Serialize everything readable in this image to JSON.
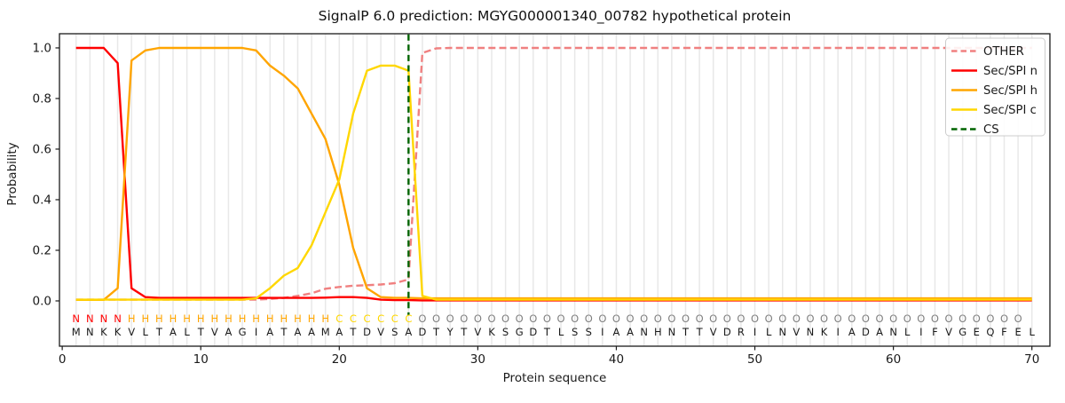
{
  "title": "SignalP 6.0 prediction: MGYG000001340_00782 hypothetical protein",
  "axes": {
    "xlabel": "Protein sequence",
    "ylabel": "Probability",
    "xticks": [
      0,
      10,
      20,
      30,
      40,
      50,
      60,
      70
    ],
    "ytick_labels": [
      "0.0",
      "0.2",
      "0.4",
      "0.6",
      "0.8",
      "1.0"
    ],
    "ytick_values": [
      0.0,
      0.2,
      0.4,
      0.6,
      0.8,
      1.0
    ]
  },
  "legend": [
    {
      "label": "OTHER",
      "color": "#f08080",
      "dashed": true
    },
    {
      "label": "Sec/SPI n",
      "color": "#ff0000",
      "dashed": false
    },
    {
      "label": "Sec/SPI h",
      "color": "#ffa500",
      "dashed": false
    },
    {
      "label": "Sec/SPI c",
      "color": "#ffd700",
      "dashed": false
    },
    {
      "label": "CS",
      "color": "#006400",
      "dashed": true
    }
  ],
  "chart_data": {
    "type": "line",
    "title": "SignalP 6.0 prediction: MGYG000001340_00782 hypothetical protein",
    "xlabel": "Protein sequence",
    "ylabel": "Probability",
    "xlim": [
      -0.2,
      71.3
    ],
    "ylim": [
      -0.179,
      1.056
    ],
    "grid": "vertical-per-residue",
    "legend_position": "upper right",
    "x": [
      1,
      2,
      3,
      4,
      5,
      6,
      7,
      8,
      9,
      10,
      11,
      12,
      13,
      14,
      15,
      16,
      17,
      18,
      19,
      20,
      21,
      22,
      23,
      24,
      25,
      26,
      27,
      28,
      29,
      30,
      31,
      32,
      33,
      34,
      35,
      36,
      37,
      38,
      39,
      40,
      41,
      42,
      43,
      44,
      45,
      46,
      47,
      48,
      49,
      50,
      51,
      52,
      53,
      54,
      55,
      56,
      57,
      58,
      59,
      60,
      61,
      62,
      63,
      64,
      65,
      66,
      67,
      68,
      69,
      70
    ],
    "series": [
      {
        "name": "OTHER",
        "color": "#f08080",
        "style": "dashed",
        "values": [
          0.005,
          0.005,
          0.005,
          0.005,
          0.005,
          0.005,
          0.005,
          0.005,
          0.005,
          0.005,
          0.005,
          0.005,
          0.005,
          0.005,
          0.008,
          0.012,
          0.02,
          0.03,
          0.048,
          0.055,
          0.06,
          0.062,
          0.065,
          0.07,
          0.085,
          0.98,
          0.998,
          1.0,
          1.0,
          1.0,
          1.0,
          1.0,
          1.0,
          1.0,
          1.0,
          1.0,
          1.0,
          1.0,
          1.0,
          1.0,
          1.0,
          1.0,
          1.0,
          1.0,
          1.0,
          1.0,
          1.0,
          1.0,
          1.0,
          1.0,
          1.0,
          1.0,
          1.0,
          1.0,
          1.0,
          1.0,
          1.0,
          1.0,
          1.0,
          1.0,
          1.0,
          1.0,
          1.0,
          1.0,
          1.0,
          1.0,
          1.0,
          1.0,
          1.0,
          1.0
        ]
      },
      {
        "name": "Sec/SPI n",
        "color": "#ff0000",
        "style": "solid",
        "values": [
          1.0,
          1.0,
          1.0,
          0.94,
          0.05,
          0.015,
          0.012,
          0.012,
          0.012,
          0.012,
          0.012,
          0.012,
          0.012,
          0.012,
          0.012,
          0.012,
          0.012,
          0.012,
          0.013,
          0.015,
          0.015,
          0.012,
          0.005,
          0.003,
          0.003,
          0.002,
          0.002,
          0.002,
          0.002,
          0.002,
          0.002,
          0.002,
          0.002,
          0.002,
          0.002,
          0.002,
          0.002,
          0.002,
          0.002,
          0.002,
          0.002,
          0.002,
          0.002,
          0.002,
          0.002,
          0.002,
          0.002,
          0.002,
          0.002,
          0.002,
          0.002,
          0.002,
          0.002,
          0.002,
          0.002,
          0.002,
          0.002,
          0.002,
          0.002,
          0.002,
          0.002,
          0.002,
          0.002,
          0.002,
          0.002,
          0.002,
          0.002,
          0.002,
          0.002,
          0.002
        ]
      },
      {
        "name": "Sec/SPI h",
        "color": "#ffa500",
        "style": "solid",
        "values": [
          0.004,
          0.004,
          0.004,
          0.05,
          0.95,
          0.99,
          1.0,
          1.0,
          1.0,
          1.0,
          1.0,
          1.0,
          1.0,
          0.99,
          0.93,
          0.89,
          0.84,
          0.74,
          0.64,
          0.46,
          0.21,
          0.05,
          0.015,
          0.012,
          0.012,
          0.01,
          0.01,
          0.01,
          0.01,
          0.01,
          0.01,
          0.01,
          0.01,
          0.01,
          0.01,
          0.01,
          0.01,
          0.01,
          0.01,
          0.01,
          0.01,
          0.01,
          0.01,
          0.01,
          0.01,
          0.01,
          0.01,
          0.01,
          0.01,
          0.01,
          0.01,
          0.01,
          0.01,
          0.01,
          0.01,
          0.01,
          0.01,
          0.01,
          0.01,
          0.01,
          0.01,
          0.01,
          0.01,
          0.01,
          0.01,
          0.01,
          0.01,
          0.01,
          0.01,
          0.01
        ]
      },
      {
        "name": "Sec/SPI c",
        "color": "#ffd700",
        "style": "solid",
        "values": [
          0.005,
          0.005,
          0.005,
          0.005,
          0.005,
          0.005,
          0.005,
          0.005,
          0.005,
          0.005,
          0.005,
          0.005,
          0.005,
          0.01,
          0.05,
          0.1,
          0.13,
          0.22,
          0.35,
          0.48,
          0.74,
          0.91,
          0.93,
          0.93,
          0.91,
          0.02,
          0.005,
          0.005,
          0.005,
          0.005,
          0.005,
          0.005,
          0.005,
          0.005,
          0.005,
          0.005,
          0.005,
          0.005,
          0.005,
          0.005,
          0.005,
          0.005,
          0.005,
          0.005,
          0.005,
          0.005,
          0.005,
          0.005,
          0.005,
          0.005,
          0.005,
          0.005,
          0.005,
          0.005,
          0.005,
          0.005,
          0.005,
          0.005,
          0.005,
          0.005,
          0.005,
          0.005,
          0.005,
          0.005,
          0.005,
          0.005,
          0.005,
          0.005,
          0.005,
          0.005
        ]
      }
    ],
    "cs_line": {
      "x": 25,
      "color": "#006400",
      "label": "CS"
    },
    "sequence": "MNKKVLTALTVAGIATAAMATDVSADTYTVKSGDTLSSIAANHNTTVDRILNVNKIADANLIFVGEQFEL",
    "region_labels": "NNNNHHHHHHHHHHHHHHHCCCCCCOOOOOOOOOOOOOOOOOOOOOOOOOOOOOOOOOOOOOOOOOOOO",
    "region_label_colors": {
      "N": "#ff0000",
      "H": "#ffa500",
      "C": "#ffd700",
      "O": "#808080"
    },
    "sequence_color": "#1a1a1a"
  },
  "style_colors": {
    "grid": "#e8e8e8",
    "frame": "#1a1a1a",
    "tick_text": "#1a1a1a",
    "legend_border": "#cccccc"
  }
}
